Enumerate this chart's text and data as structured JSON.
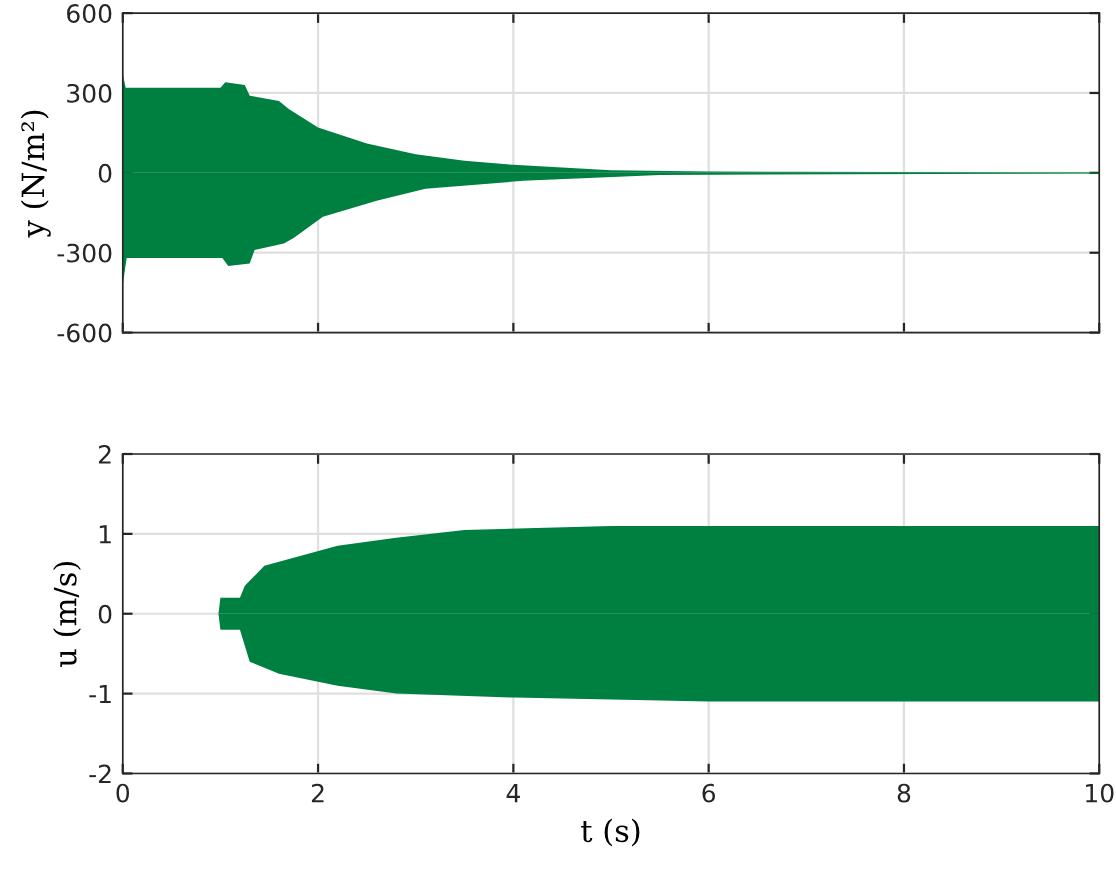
{
  "chart_data": [
    {
      "type": "area",
      "ylabel": "y (N/m²)",
      "xlim": [
        0,
        10
      ],
      "xticks": [
        0,
        2,
        4,
        6,
        8,
        10
      ],
      "ylim": [
        -600,
        600
      ],
      "yticks": [
        -600,
        -300,
        0,
        300,
        600
      ],
      "grid": true,
      "tick_labels": "y",
      "series": [
        {
          "color": "#008040",
          "x": [
            0,
            0.03,
            0.06,
            1.0,
            1.05,
            1.25,
            1.3,
            1.6,
            1.7,
            2.0,
            2.5,
            3.0,
            3.5,
            4.0,
            5.0,
            6.0,
            10
          ],
          "values": [
            370,
            320,
            320,
            320,
            340,
            330,
            290,
            270,
            240,
            170,
            110,
            70,
            45,
            30,
            10,
            5,
            2
          ]
        },
        {
          "color": "#008040",
          "x": [
            0,
            0.04,
            1.02,
            1.08,
            1.3,
            1.35,
            1.65,
            1.75,
            2.05,
            2.6,
            3.1,
            4.1,
            5.5,
            10
          ],
          "values": [
            -420,
            -320,
            -320,
            -350,
            -340,
            -290,
            -265,
            -245,
            -165,
            -105,
            -60,
            -30,
            -8,
            -2
          ]
        }
      ]
    },
    {
      "type": "area",
      "xlabel": "t (s)",
      "ylabel": "u (m/s)",
      "xlim": [
        0,
        10
      ],
      "xticks": [
        0,
        2,
        4,
        6,
        8,
        10
      ],
      "ylim": [
        -2,
        2
      ],
      "yticks": [
        -2,
        -1,
        0,
        1,
        2
      ],
      "grid": true,
      "series": [
        {
          "color": "#008040",
          "x": [
            0,
            0.98,
            1.0,
            1.2,
            1.25,
            1.45,
            1.9,
            2.2,
            2.8,
            3.5,
            5.0,
            10
          ],
          "values": [
            0,
            0,
            0.2,
            0.2,
            0.35,
            0.6,
            0.75,
            0.85,
            0.95,
            1.05,
            1.1,
            1.1
          ]
        },
        {
          "color": "#008040",
          "x": [
            0,
            0.98,
            1.0,
            1.2,
            1.3,
            1.6,
            2.2,
            2.8,
            4.0,
            6.0,
            10
          ],
          "values": [
            0,
            0,
            -0.2,
            -0.2,
            -0.6,
            -0.75,
            -0.9,
            -1.0,
            -1.05,
            -1.1,
            -1.1
          ]
        }
      ]
    }
  ]
}
